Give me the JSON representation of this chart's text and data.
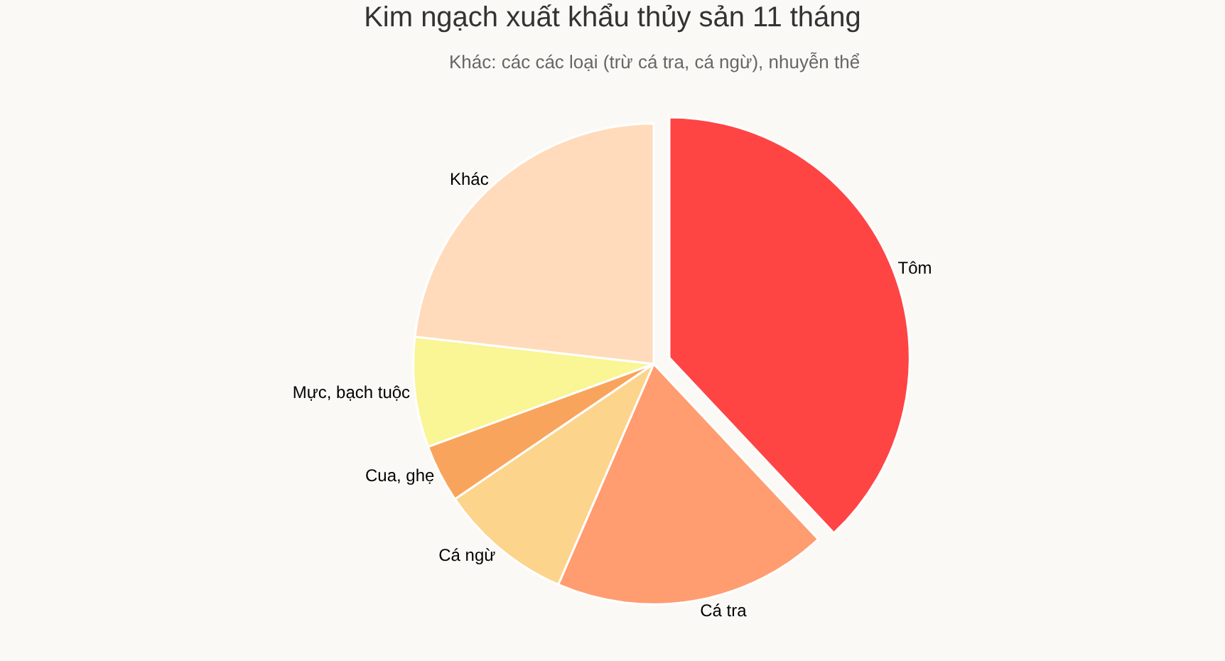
{
  "chart_data": {
    "type": "pie",
    "title": "Kim ngạch xuất khẩu thủy sản 11 tháng",
    "subtitle": "Khác: các các loại (trừ cá tra, cá ngừ), nhuyễn thể",
    "categories": [
      "Tôm",
      "Cá tra",
      "Cá ngừ",
      "Cua, ghẹ",
      "Mực, bạch tuộc",
      "Khác"
    ],
    "values": [
      38,
      18.5,
      9,
      3.9,
      7.4,
      23.2
    ],
    "colors": [
      "#ff4444",
      "#ff9c70",
      "#fcd48c",
      "#f9a45c",
      "#faf595",
      "#ffdbbb"
    ],
    "legend": false
  }
}
